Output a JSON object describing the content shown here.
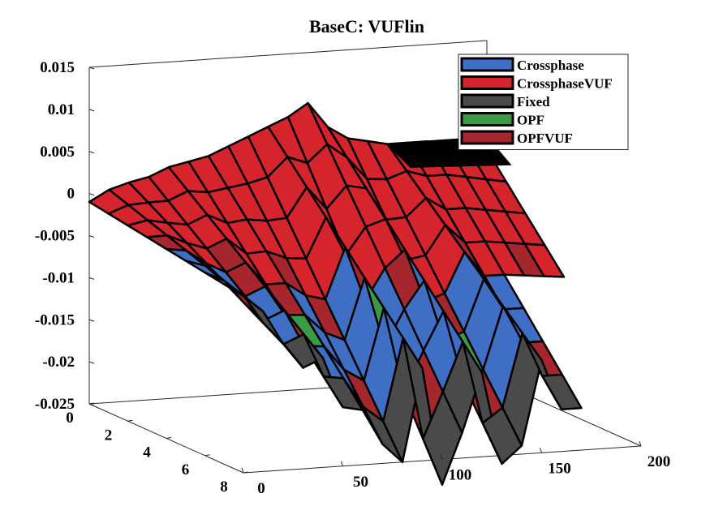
{
  "chart_data": {
    "type": "3d-surface",
    "title": "BaseC: VUFlin",
    "xlabel": "",
    "ylabel": "",
    "zlabel": "",
    "xlim": [
      0,
      200
    ],
    "ylim": [
      0,
      8
    ],
    "zlim": [
      -0.025,
      0.015
    ],
    "x_ticks": [
      "0",
      "50",
      "100",
      "150",
      "200"
    ],
    "y_ticks": [
      "0",
      "2",
      "4",
      "6",
      "8"
    ],
    "z_ticks": [
      "0.015",
      "0.01",
      "0.005",
      "0",
      "-0.005",
      "-0.01",
      "-0.015",
      "-0.02",
      "-0.025"
    ],
    "legend_position": "top-right",
    "series": [
      {
        "name": "Crossphase",
        "color": "#3f6fc4"
      },
      {
        "name": "CrossphaseVUF",
        "color": "#d5242b"
      },
      {
        "name": "Fixed",
        "color": "#4a4a4a"
      },
      {
        "name": "OPF",
        "color": "#3a9a45"
      },
      {
        "name": "OPFVUF",
        "color": "#a6262d"
      }
    ],
    "front_profile": {
      "x": [
        0,
        10,
        20,
        30,
        35,
        40,
        48,
        52,
        58,
        62,
        68,
        75,
        80,
        90,
        100,
        105,
        110,
        120,
        130,
        135,
        140,
        150,
        160
      ],
      "z": [
        -0.004,
        -0.006,
        -0.01,
        -0.013,
        -0.023,
        -0.012,
        -0.026,
        -0.01,
        -0.024,
        -0.013,
        -0.027,
        -0.012,
        -0.025,
        -0.014,
        -0.028,
        -0.01,
        -0.022,
        -0.015,
        -0.026,
        -0.011,
        -0.024,
        -0.014,
        -0.02
      ]
    },
    "top_profile": {
      "x": [
        0,
        10,
        20,
        30,
        40,
        50,
        60,
        70,
        80,
        90,
        100,
        110,
        120,
        130,
        140,
        150,
        160,
        170,
        180,
        190,
        200
      ],
      "z": [
        -0.001,
        0.0003,
        0.001,
        0.0015,
        0.0025,
        0.003,
        0.0035,
        0.0045,
        0.0055,
        0.0065,
        0.0075,
        0.009,
        0.006,
        0.0045,
        0.004,
        0.0035,
        0.0035,
        0.0035,
        0.003,
        0.0025,
        0.002
      ]
    }
  }
}
